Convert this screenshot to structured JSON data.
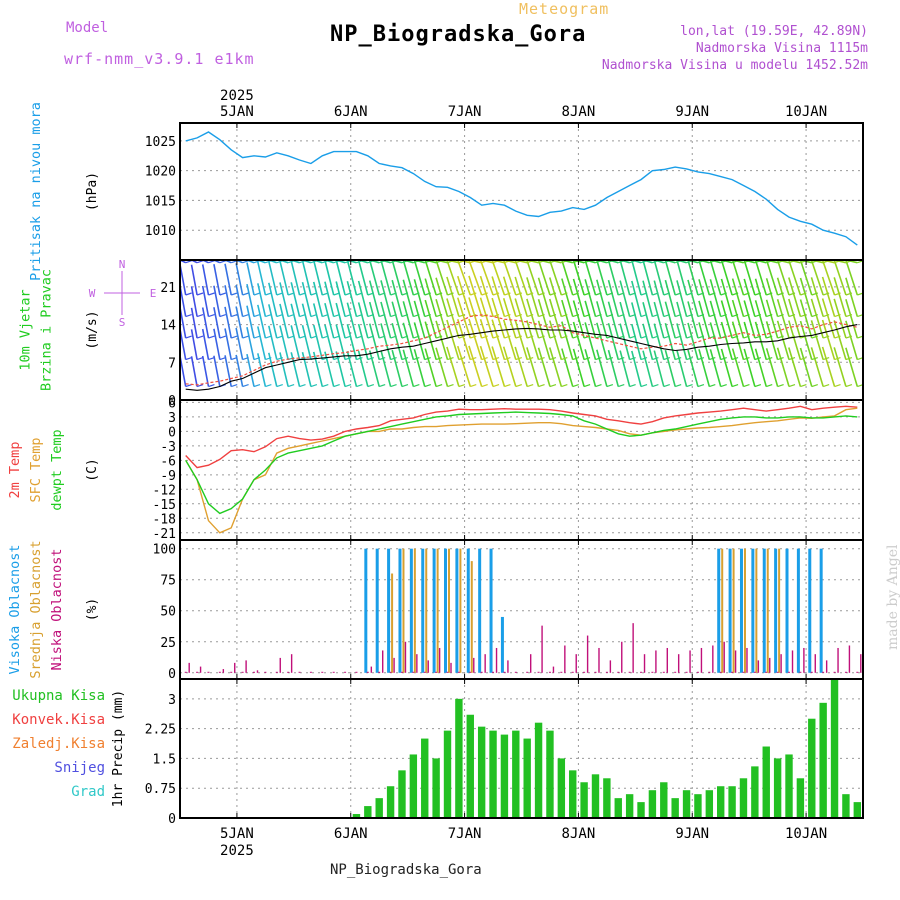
{
  "header": {
    "model_label": "Model",
    "model_name": "wrf-nmm_v3.9.1 e1km",
    "meteogram_label": "Meteogram",
    "station": "NP_Biogradska_Gora",
    "lonlat": "lon,lat (19.59E, 42.89N)",
    "elevation": "Nadmorska Visina 1115m",
    "model_elevation": "Nadmorska Visina u modelu 1452.52m"
  },
  "footer": {
    "station": "NP_Biogradska_Gora",
    "watermark": "made by Angel"
  },
  "colors": {
    "pressure": "#1a9ee8",
    "temp2m": "#f04040",
    "sfc_temp": "#e0a030",
    "dewpoint": "#20cc20",
    "wind_speed": "#000000",
    "high_cloud": "#1a9ee8",
    "mid_cloud": "#d8a030",
    "low_cloud": "#c0107a",
    "precip_total": "#22c022",
    "violet": "#c060e0"
  },
  "chart_data": [
    {
      "type": "line",
      "id": "pressure",
      "ylabel": "(hPa)",
      "side_labels": [
        {
          "text": "Pritisak na nivou mora",
          "color": "#1a9ee8"
        }
      ],
      "ylim": [
        1006,
        1027
      ],
      "yticks": [
        1010,
        1015,
        1020,
        1025
      ],
      "x_start": 4.5,
      "x_end": 10.5,
      "series": [
        {
          "values": [
            1025,
            1025.5,
            1026.5,
            1025.2,
            1023.5,
            1022.2,
            1022.5,
            1022.3,
            1023,
            1022.5,
            1021.8,
            1021.2,
            1022.5,
            1023.2,
            1023.2,
            1023.2,
            1022.5,
            1021.2,
            1020.8,
            1020.5,
            1019.5,
            1018.2,
            1017.3,
            1017.2,
            1016.5,
            1015.5,
            1014.2,
            1014.5,
            1014.2,
            1013.2,
            1012.5,
            1012.3,
            1013,
            1013.2,
            1013.8,
            1013.5,
            1014.2,
            1015.5,
            1016.5,
            1017.5,
            1018.5,
            1020,
            1020.2,
            1020.6,
            1020.3,
            1019.8,
            1019.5,
            1019,
            1018.5,
            1017.5,
            1016.5,
            1015.2,
            1013.5,
            1012.2,
            1011.5,
            1011,
            1010,
            1009.5,
            1008.9,
            1007.5
          ]
        }
      ]
    },
    {
      "type": "line",
      "id": "wind",
      "ylabel": "(m/s)",
      "side_labels": [
        {
          "text": "10m Vjetar",
          "color": "#20cc20"
        },
        {
          "text": "Brzina i Pravac",
          "color": "#20cc20"
        }
      ],
      "compass": {
        "n": "N",
        "s": "S",
        "e": "E",
        "w": "W"
      },
      "ylim": [
        0,
        26
      ],
      "yticks": [
        0,
        7,
        14,
        21
      ],
      "barb_rows": [
        2.5,
        7.5,
        11.5,
        15.5,
        19.5,
        25.5
      ],
      "series": [
        {
          "values": [
            3,
            2.8,
            3.2,
            3.5,
            4,
            4.5,
            5.5,
            6.5,
            7.2,
            7.6,
            7.8,
            8,
            8.3,
            8.6,
            8.8,
            9.2,
            9.5,
            10,
            10.2,
            10.5,
            11,
            11.5,
            12.5,
            13.5,
            14.5,
            15.5,
            15.8,
            15.5,
            15,
            14.8,
            14.5,
            14,
            13.5,
            13.8,
            12.5,
            12,
            11.5,
            11,
            10.5,
            10,
            9.5,
            9.8,
            10,
            10.5,
            10.2,
            10.8,
            11.5,
            11.5,
            12,
            12.5,
            12,
            12.2,
            12.8,
            13.5,
            13.8,
            13.2,
            14,
            14.5,
            14,
            13.5
          ]
        },
        {
          "values": [
            2,
            1.8,
            2,
            2.5,
            3.5,
            4,
            5,
            6,
            6.5,
            7,
            7.5,
            7.6,
            7.8,
            8,
            8.2,
            8.2,
            8.5,
            9,
            9.5,
            9.8,
            10,
            10.5,
            11,
            11.5,
            12,
            12.2,
            12.5,
            12.8,
            13,
            13.2,
            13.3,
            13.2,
            13,
            13,
            12.8,
            12.5,
            12.2,
            12,
            11.5,
            11,
            10.5,
            10,
            9.5,
            9.2,
            9.4,
            9.8,
            10,
            10.3,
            10.5,
            10.6,
            10.8,
            10.8,
            11,
            11.5,
            11.8,
            12,
            12.5,
            13,
            13.6,
            14
          ]
        }
      ]
    },
    {
      "type": "line",
      "id": "temperature",
      "ylabel": "(C)",
      "side_labels": [
        {
          "text": "2m Temp",
          "color": "#f04040"
        },
        {
          "text": "SFC Temp",
          "color": "#e0a030"
        },
        {
          "text": "dewpt Temp",
          "color": "#20cc20"
        }
      ],
      "ylim": [
        -22.5,
        6.5
      ],
      "yticks": [
        6,
        3,
        0,
        -3,
        -6,
        -9,
        -12,
        -15,
        -18,
        -21
      ],
      "series": [
        {
          "values": [
            -5,
            -7.5,
            -7,
            -5.8,
            -4,
            -3.8,
            -4.2,
            -3.2,
            -1.5,
            -1,
            -1.5,
            -1.8,
            -1.6,
            -1,
            0,
            0.5,
            0.8,
            1.2,
            2.2,
            2.5,
            2.8,
            3.5,
            4,
            4.2,
            4.6,
            4.5,
            4.5,
            4.6,
            4.7,
            4.6,
            4.6,
            4.6,
            4.5,
            4.2,
            3.8,
            3.5,
            3.2,
            2.5,
            2.2,
            1.8,
            1.5,
            2,
            2.8,
            3.2,
            3.5,
            3.8,
            4,
            4.2,
            4.5,
            4.8,
            4.5,
            4.2,
            4.5,
            4.8,
            5.2,
            4.5,
            4.8,
            5,
            5.2,
            5
          ]
        },
        {
          "values": [
            -6,
            -10,
            -18.5,
            -21,
            -20,
            -14,
            -10,
            -9,
            -4.5,
            -3.5,
            -3,
            -2.5,
            -2,
            -1.5,
            -1,
            -0.5,
            0,
            0,
            0.5,
            0.5,
            0.8,
            1,
            1,
            1.2,
            1.3,
            1.4,
            1.5,
            1.5,
            1.5,
            1.6,
            1.7,
            1.8,
            1.8,
            1.6,
            1.2,
            1,
            0.8,
            0.5,
            0.2,
            -0.5,
            -0.8,
            -0.3,
            0,
            0.3,
            0.5,
            0.7,
            0.8,
            1,
            1.2,
            1.5,
            1.8,
            2,
            2.2,
            2.5,
            2.8,
            2.7,
            3,
            3.2,
            4.5,
            4.8
          ]
        },
        {
          "values": [
            -6,
            -10,
            -15,
            -17,
            -16,
            -14,
            -10,
            -8,
            -5.5,
            -4.5,
            -4,
            -3.5,
            -3,
            -2,
            -1,
            -0.5,
            0,
            0.5,
            1,
            1.5,
            2,
            2.5,
            3,
            3.2,
            3.5,
            3.6,
            3.7,
            3.8,
            3.9,
            4,
            3.9,
            3.8,
            3.7,
            3.5,
            3.2,
            2.2,
            1.5,
            0.5,
            -0.5,
            -1,
            -0.8,
            -0.3,
            0.2,
            0.5,
            1,
            1.5,
            2,
            2.5,
            2.8,
            3,
            3,
            2.8,
            2.8,
            3,
            3,
            2.8,
            2.8,
            3,
            3.2,
            3
          ]
        }
      ]
    },
    {
      "type": "bar",
      "id": "cloud",
      "ylabel": "(%)",
      "side_labels": [
        {
          "text": "Visoka Oblacnost",
          "color": "#1a9ee8"
        },
        {
          "text": "Srednja Oblacnost",
          "color": "#d8a030"
        },
        {
          "text": "Niska Oblacnost",
          "color": "#c0107a"
        }
      ],
      "ylim": [
        -5,
        107
      ],
      "yticks": [
        0,
        25,
        50,
        75,
        100
      ],
      "series": [
        {
          "name": "Visoka Oblacnost",
          "values": [
            0,
            0,
            0,
            0,
            0,
            0,
            0,
            0,
            0,
            0,
            0,
            0,
            0,
            0,
            0,
            0,
            100,
            100,
            100,
            100,
            100,
            100,
            100,
            100,
            100,
            100,
            100,
            100,
            45,
            0,
            0,
            0,
            0,
            0,
            0,
            0,
            0,
            0,
            0,
            0,
            0,
            0,
            0,
            0,
            0,
            0,
            0,
            100,
            100,
            100,
            100,
            100,
            100,
            100,
            100,
            100,
            100,
            0,
            0,
            0
          ]
        },
        {
          "name": "Srednja Oblacnost",
          "values": [
            0,
            0,
            0,
            0,
            0,
            0,
            0,
            0,
            0,
            0,
            0,
            0,
            0,
            0,
            0,
            0,
            0,
            0,
            80,
            100,
            100,
            100,
            100,
            100,
            100,
            90,
            0,
            0,
            0,
            0,
            0,
            0,
            0,
            0,
            0,
            0,
            0,
            0,
            0,
            0,
            0,
            0,
            0,
            0,
            0,
            0,
            0,
            100,
            100,
            100,
            100,
            100,
            100,
            0,
            0,
            0,
            0,
            0,
            0,
            0
          ]
        },
        {
          "name": "Niska Oblacnost",
          "values": [
            8,
            5,
            0,
            3,
            8,
            10,
            2,
            0,
            12,
            15,
            0,
            0,
            0,
            0,
            0,
            0,
            5,
            18,
            12,
            25,
            15,
            10,
            20,
            8,
            0,
            12,
            15,
            20,
            10,
            0,
            15,
            38,
            5,
            22,
            15,
            30,
            20,
            10,
            25,
            40,
            15,
            18,
            20,
            15,
            18,
            20,
            22,
            25,
            18,
            20,
            10,
            12,
            15,
            18,
            20,
            15,
            10,
            20,
            22,
            15
          ]
        }
      ]
    },
    {
      "type": "bar",
      "id": "precip",
      "ylabel": "1hr Precip (mm)",
      "side_labels": [
        {
          "text": "Ukupna Kisa",
          "color": "#22c022"
        },
        {
          "text": "Konvek.Kisa",
          "color": "#f04040"
        },
        {
          "text": "Zaledj.Kisa",
          "color": "#f08030"
        },
        {
          "text": "Snijeg",
          "color": "#5050e0"
        },
        {
          "text": "Grad",
          "color": "#30c8c8"
        }
      ],
      "ylim": [
        0,
        3.5
      ],
      "yticks": [
        0,
        0.75,
        1.5,
        2.25,
        3
      ],
      "series": [
        {
          "name": "Ukupna Kisa",
          "values": [
            0,
            0,
            0,
            0,
            0,
            0,
            0,
            0,
            0,
            0,
            0,
            0,
            0,
            0,
            0,
            0.1,
            0.3,
            0.5,
            0.8,
            1.2,
            1.6,
            2,
            1.5,
            2.2,
            3,
            2.6,
            2.3,
            2.2,
            2.1,
            2.2,
            2,
            2.4,
            2.2,
            1.5,
            1.2,
            0.9,
            1.1,
            1,
            0.5,
            0.6,
            0.4,
            0.7,
            0.9,
            0.5,
            0.7,
            0.6,
            0.7,
            0.8,
            0.8,
            1,
            1.3,
            1.8,
            1.5,
            1.6,
            1,
            2.5,
            2.9,
            3.5,
            0.6,
            0.4
          ]
        }
      ]
    }
  ],
  "x_axis": {
    "year": "2025",
    "date_labels": [
      "5JAN",
      "6JAN",
      "7JAN",
      "8JAN",
      "9JAN",
      "10JAN"
    ],
    "date_positions": [
      5,
      6,
      7,
      8,
      9,
      10
    ]
  }
}
